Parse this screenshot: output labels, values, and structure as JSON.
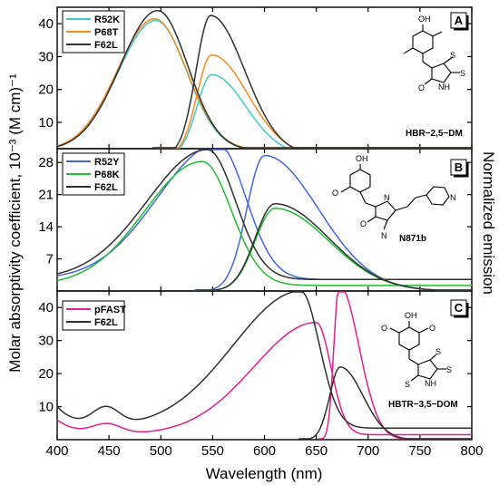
{
  "figure": {
    "ylabel": "Molar absorptivity coefficient, 10⁻³ (M cm)⁻¹",
    "ylabel_right": "Normalized emission",
    "xlabel": "Wavelength (nm)"
  },
  "chart_data": [
    {
      "type": "line",
      "panel": "A",
      "molecule": "HBR−2,5−DM",
      "atoms": [
        "OH",
        "O",
        "S",
        "NH",
        "S"
      ],
      "xlim": [
        400,
        800
      ],
      "ylim": [
        2,
        45
      ],
      "x_ticks": [
        400,
        450,
        500,
        550,
        600,
        650,
        700,
        750,
        800
      ],
      "y_ticks": [
        10,
        20,
        30,
        40
      ],
      "series": [
        {
          "name": "R52K",
          "color": "#40c8c8",
          "absorption": {
            "peak_x": 495,
            "peak_y": 39.5,
            "sigma_left": 36,
            "sigma_right": 30,
            "baseline": 1.5
          },
          "emission": {
            "peak_x": 549,
            "peak_y": 24.5,
            "sigma_left": 14,
            "sigma_right": 33
          }
        },
        {
          "name": "P68T",
          "color": "#f08c28",
          "absorption": {
            "peak_x": 494,
            "peak_y": 40,
            "sigma_left": 36,
            "sigma_right": 31,
            "baseline": 1.5
          },
          "emission": {
            "peak_x": 549,
            "peak_y": 30.5,
            "sigma_left": 14,
            "sigma_right": 35
          }
        },
        {
          "name": "F62L",
          "color": "#303030",
          "absorption": {
            "peak_x": 497,
            "peak_y": 42.5,
            "sigma_left": 36,
            "sigma_right": 29,
            "baseline": 1.5
          },
          "emission": {
            "peak_x": 548,
            "peak_y": 42.5,
            "sigma_left": 14,
            "sigma_right": 33
          }
        }
      ]
    },
    {
      "type": "line",
      "panel": "B",
      "molecule": "N871b",
      "atoms": [
        "OH",
        "O",
        "N",
        "O",
        "N",
        "N"
      ],
      "xlim": [
        400,
        800
      ],
      "ylim": [
        0,
        31
      ],
      "x_ticks": [
        400,
        450,
        500,
        550,
        600,
        650,
        700,
        750,
        800
      ],
      "y_ticks": [
        7,
        14,
        21,
        28
      ],
      "series": [
        {
          "name": "R52Y",
          "color": "#4466dd",
          "absorption": {
            "peak_x": 555,
            "peak_y": 29.5,
            "sigma_left": 58,
            "sigma_right": 27,
            "baseline": 2.5
          },
          "emission": {
            "peak_x": 600,
            "peak_y": 29.5,
            "sigma_left": 17,
            "sigma_right": 52
          }
        },
        {
          "name": "P68K",
          "color": "#22bb33",
          "absorption": {
            "peak_x": 540,
            "peak_y": 27,
            "sigma_left": 55,
            "sigma_right": 28,
            "baseline": 1.2
          },
          "emission": {
            "peak_x": 610,
            "peak_y": 18,
            "sigma_left": 19,
            "sigma_right": 52
          }
        },
        {
          "name": "F62L",
          "color": "#303030",
          "absorption": {
            "peak_x": 545,
            "peak_y": 28.3,
            "sigma_left": 58,
            "sigma_right": 27,
            "baseline": 2.5
          },
          "emission": {
            "peak_x": 610,
            "peak_y": 19,
            "sigma_left": 19,
            "sigma_right": 52
          }
        }
      ]
    },
    {
      "type": "line",
      "panel": "C",
      "molecule": "HBTR−3,5−DOM",
      "atoms": [
        "OH",
        "O",
        "O",
        "S",
        "NH",
        "S",
        "S"
      ],
      "xlim": [
        400,
        800
      ],
      "ylim": [
        0,
        45
      ],
      "x_ticks": [
        400,
        450,
        500,
        550,
        600,
        650,
        700,
        750,
        800
      ],
      "y_ticks": [
        10,
        20,
        30,
        40
      ],
      "series": [
        {
          "name": "pFAST",
          "color": "#e02090",
          "absorption": {
            "peak_x": 650,
            "peak_y": 34,
            "sigma_left": 60,
            "sigma_right": 14,
            "baseline": 1.5,
            "uv_band": {
              "x": 448,
              "y": 3,
              "sigma": 14
            },
            "start_y": 6
          },
          "emission": {
            "peak_x": 672,
            "peak_y": 47,
            "sigma_left": 5,
            "sigma_right": 19
          }
        },
        {
          "name": "F62L",
          "color": "#303030",
          "absorption": {
            "peak_x": 635,
            "peak_y": 41.5,
            "sigma_left": 65,
            "sigma_right": 18,
            "baseline": 3.5,
            "uv_band": {
              "x": 447,
              "y": 5.5,
              "sigma": 13
            },
            "start_y": 10
          },
          "emission": {
            "peak_x": 673,
            "peak_y": 22,
            "sigma_left": 10,
            "sigma_right": 22
          }
        }
      ]
    }
  ]
}
